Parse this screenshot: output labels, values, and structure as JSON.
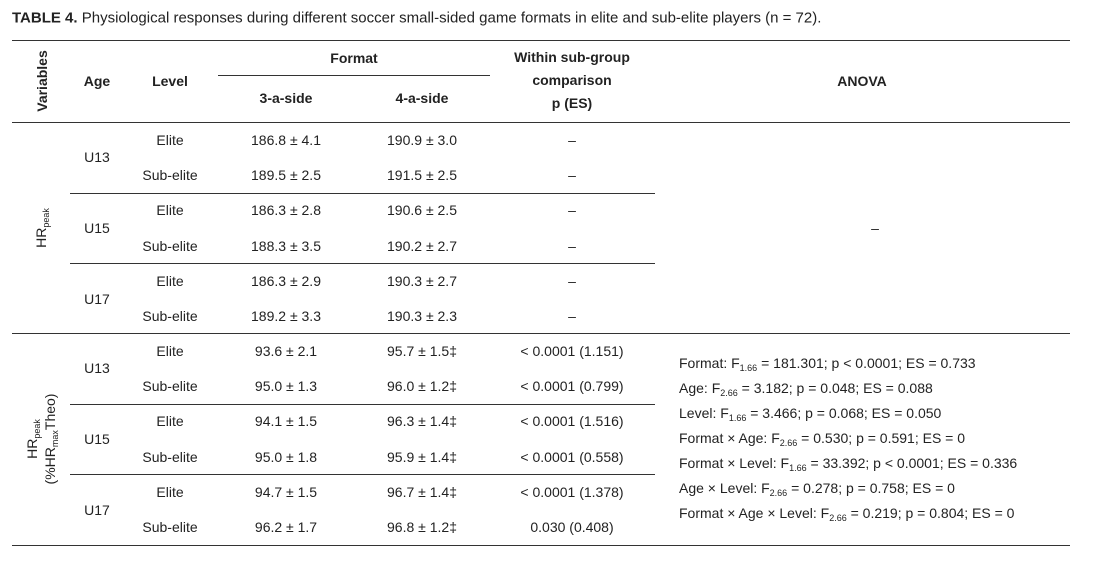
{
  "caption": {
    "label": "TABLE 4.",
    "text": "Physiological responses during different soccer small-sided game formats in elite and sub-elite players (n = 72)."
  },
  "header": {
    "variables": "Variables",
    "age": "Age",
    "level": "Level",
    "format": "Format",
    "format_3": "3-a-side",
    "format_4": "4-a-side",
    "within": [
      "Within sub-group",
      "comparison",
      "p (ES)"
    ],
    "anova": "ANOVA"
  },
  "groups": [
    {
      "variable": [
        [
          {
            "text": "HR"
          },
          {
            "text": "peak",
            "sub": true
          }
        ]
      ],
      "ages": [
        {
          "age": "U13",
          "rows": [
            [
              "Elite",
              "186.8 ± 4.1",
              "190.9 ± 3.0",
              "–"
            ],
            [
              "Sub-elite",
              "189.5 ± 2.5",
              "191.5 ± 2.5",
              "–"
            ]
          ]
        },
        {
          "age": "U15",
          "rows": [
            [
              "Elite",
              "186.3 ± 2.8",
              "190.6 ± 2.5",
              "–"
            ],
            [
              "Sub-elite",
              "188.3 ± 3.5",
              "190.2 ± 2.7",
              "–"
            ]
          ]
        },
        {
          "age": "U17",
          "rows": [
            [
              "Elite",
              "186.3 ± 2.9",
              "190.3 ± 2.7",
              "–"
            ],
            [
              "Sub-elite",
              "189.2 ± 3.3",
              "190.3 ± 2.3",
              "–"
            ]
          ]
        }
      ],
      "anova": [
        [
          {
            "text": "–"
          }
        ]
      ]
    },
    {
      "variable": [
        [
          {
            "text": "HR"
          },
          {
            "text": "peak",
            "sub": true
          }
        ],
        [
          {
            "text": "(%HR"
          },
          {
            "text": "max",
            "sub": true
          },
          {
            "text": "Theo)"
          }
        ]
      ],
      "ages": [
        {
          "age": "U13",
          "rows": [
            [
              "Elite",
              "93.6 ± 2.1",
              "95.7 ± 1.5‡",
              "< 0.0001 (1.151)"
            ],
            [
              "Sub-elite",
              "95.0 ± 1.3",
              "96.0 ± 1.2‡",
              "< 0.0001 (0.799)"
            ]
          ]
        },
        {
          "age": "U15",
          "rows": [
            [
              "Elite",
              "94.1 ± 1.5",
              "96.3 ± 1.4‡",
              "< 0.0001 (1.516)"
            ],
            [
              "Sub-elite",
              "95.0 ± 1.8",
              "95.9 ± 1.4‡",
              "< 0.0001 (0.558)"
            ]
          ]
        },
        {
          "age": "U17",
          "rows": [
            [
              "Elite",
              "94.7 ± 1.5",
              "96.7 ± 1.4‡",
              "< 0.0001 (1.378)"
            ],
            [
              "Sub-elite",
              "96.2 ± 1.7",
              "96.8 ± 1.2‡",
              "0.030 (0.408)"
            ]
          ]
        }
      ],
      "anova": [
        [
          {
            "text": "Format: F"
          },
          {
            "text": "1.66",
            "sub": true
          },
          {
            "text": " = 181.301; p < 0.0001; ES = 0.733"
          }
        ],
        [
          {
            "text": "Age: F"
          },
          {
            "text": "2.66",
            "sub": true
          },
          {
            "text": " = 3.182; p = 0.048; ES = 0.088"
          }
        ],
        [
          {
            "text": "Level: F"
          },
          {
            "text": "1.66",
            "sub": true
          },
          {
            "text": " = 3.466; p = 0.068; ES = 0.050"
          }
        ],
        [
          {
            "text": "Format × Age: F"
          },
          {
            "text": "2.66",
            "sub": true
          },
          {
            "text": " = 0.530; p = 0.591; ES = 0"
          }
        ],
        [
          {
            "text": "Format × Level: F"
          },
          {
            "text": "1.66",
            "sub": true
          },
          {
            "text": " = 33.392; p < 0.0001; ES = 0.336"
          }
        ],
        [
          {
            "text": "Age × Level: F"
          },
          {
            "text": "2.66",
            "sub": true
          },
          {
            "text": " = 0.278; p = 0.758; ES = 0"
          }
        ],
        [
          {
            "text": "Format × Age × Level: F"
          },
          {
            "text": "2.66",
            "sub": true
          },
          {
            "text": " = 0.219; p = 0.804; ES = 0"
          }
        ]
      ]
    }
  ]
}
